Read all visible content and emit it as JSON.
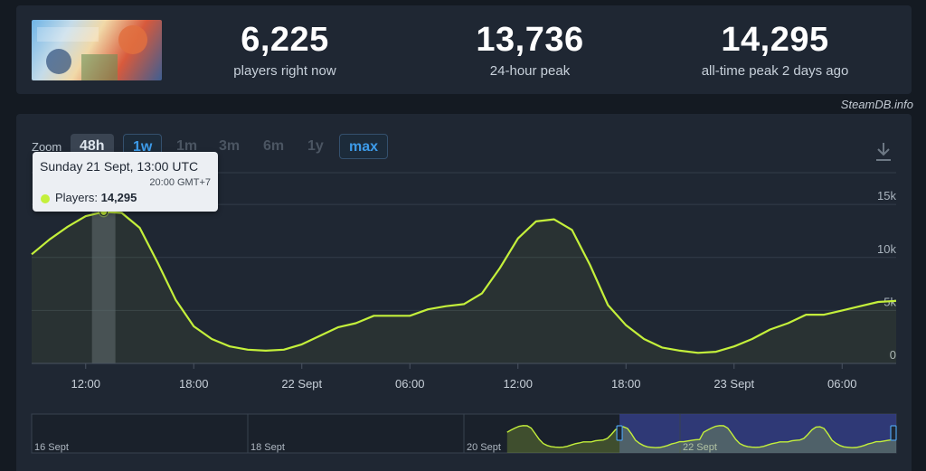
{
  "stats": {
    "current": {
      "value": "6,225",
      "label": "players right now"
    },
    "peak_24h": {
      "value": "13,736",
      "label": "24-hour peak"
    },
    "all_time": {
      "value": "14,295",
      "label": "all-time peak 2 days ago"
    }
  },
  "credit": "SteamDB.info",
  "zoom": {
    "label": "Zoom",
    "buttons": [
      "48h",
      "1w",
      "1m",
      "3m",
      "6m",
      "1y",
      "max"
    ],
    "active": "48h"
  },
  "tooltip": {
    "date": "Sunday 21 Sept, 13:00 UTC",
    "local_time": "20:00 GMT+7",
    "series": "Players",
    "value": "14,295"
  },
  "colors": {
    "line": "#c4f03b",
    "navigator_selection": "#35408a"
  },
  "chart_data": {
    "type": "area",
    "x_unit": "hour",
    "x": [
      "21 Sept 09:00",
      "21 Sept 10:00",
      "21 Sept 11:00",
      "21 Sept 12:00",
      "21 Sept 13:00",
      "21 Sept 14:00",
      "21 Sept 15:00",
      "21 Sept 16:00",
      "21 Sept 17:00",
      "21 Sept 18:00",
      "21 Sept 19:00",
      "21 Sept 20:00",
      "21 Sept 21:00",
      "21 Sept 22:00",
      "21 Sept 23:00",
      "22 Sept 00:00",
      "22 Sept 01:00",
      "22 Sept 02:00",
      "22 Sept 03:00",
      "22 Sept 04:00",
      "22 Sept 05:00",
      "22 Sept 06:00",
      "22 Sept 07:00",
      "22 Sept 08:00",
      "22 Sept 09:00",
      "22 Sept 10:00",
      "22 Sept 11:00",
      "22 Sept 12:00",
      "22 Sept 13:00",
      "22 Sept 14:00",
      "22 Sept 15:00",
      "22 Sept 16:00",
      "22 Sept 17:00",
      "22 Sept 18:00",
      "22 Sept 19:00",
      "22 Sept 20:00",
      "22 Sept 21:00",
      "22 Sept 22:00",
      "22 Sept 23:00",
      "23 Sept 00:00",
      "23 Sept 01:00",
      "23 Sept 02:00",
      "23 Sept 03:00",
      "23 Sept 04:00",
      "23 Sept 05:00",
      "23 Sept 06:00",
      "23 Sept 07:00",
      "23 Sept 08:00",
      "23 Sept 09:00"
    ],
    "series": [
      {
        "name": "Players",
        "values": [
          10300,
          11700,
          12900,
          13900,
          14295,
          14200,
          12800,
          9500,
          6000,
          3500,
          2300,
          1600,
          1300,
          1200,
          1300,
          1800,
          2600,
          3400,
          3800,
          4500,
          4500,
          4500,
          5100,
          5400,
          5600,
          6600,
          9000,
          11800,
          13400,
          13600,
          12600,
          9300,
          5500,
          3600,
          2300,
          1500,
          1200,
          1000,
          1100,
          1600,
          2300,
          3200,
          3800,
          4600,
          4600,
          5000,
          5400,
          5800,
          5900
        ]
      }
    ],
    "highlight": {
      "x": "21 Sept 13:00",
      "value": 14295
    },
    "y_ticks": [
      0,
      5000,
      10000,
      15000
    ],
    "y_tick_labels": [
      "0",
      "5k",
      "10k",
      "15k"
    ],
    "ylim": [
      0,
      18000
    ],
    "x_ticks": [
      "21 Sept 12:00",
      "21 Sept 18:00",
      "22 Sept 00:00",
      "22 Sept 06:00",
      "22 Sept 12:00",
      "22 Sept 18:00",
      "23 Sept 00:00",
      "23 Sept 06:00"
    ],
    "x_tick_labels": [
      "12:00",
      "18:00",
      "22 Sept",
      "06:00",
      "12:00",
      "18:00",
      "23 Sept",
      "06:00"
    ],
    "grid": true,
    "navigator": {
      "labels": [
        "16 Sept",
        "18 Sept",
        "20 Sept",
        "22 Sept"
      ],
      "selection": [
        "21 Sept 09:00",
        "23 Sept 09:00"
      ]
    }
  }
}
